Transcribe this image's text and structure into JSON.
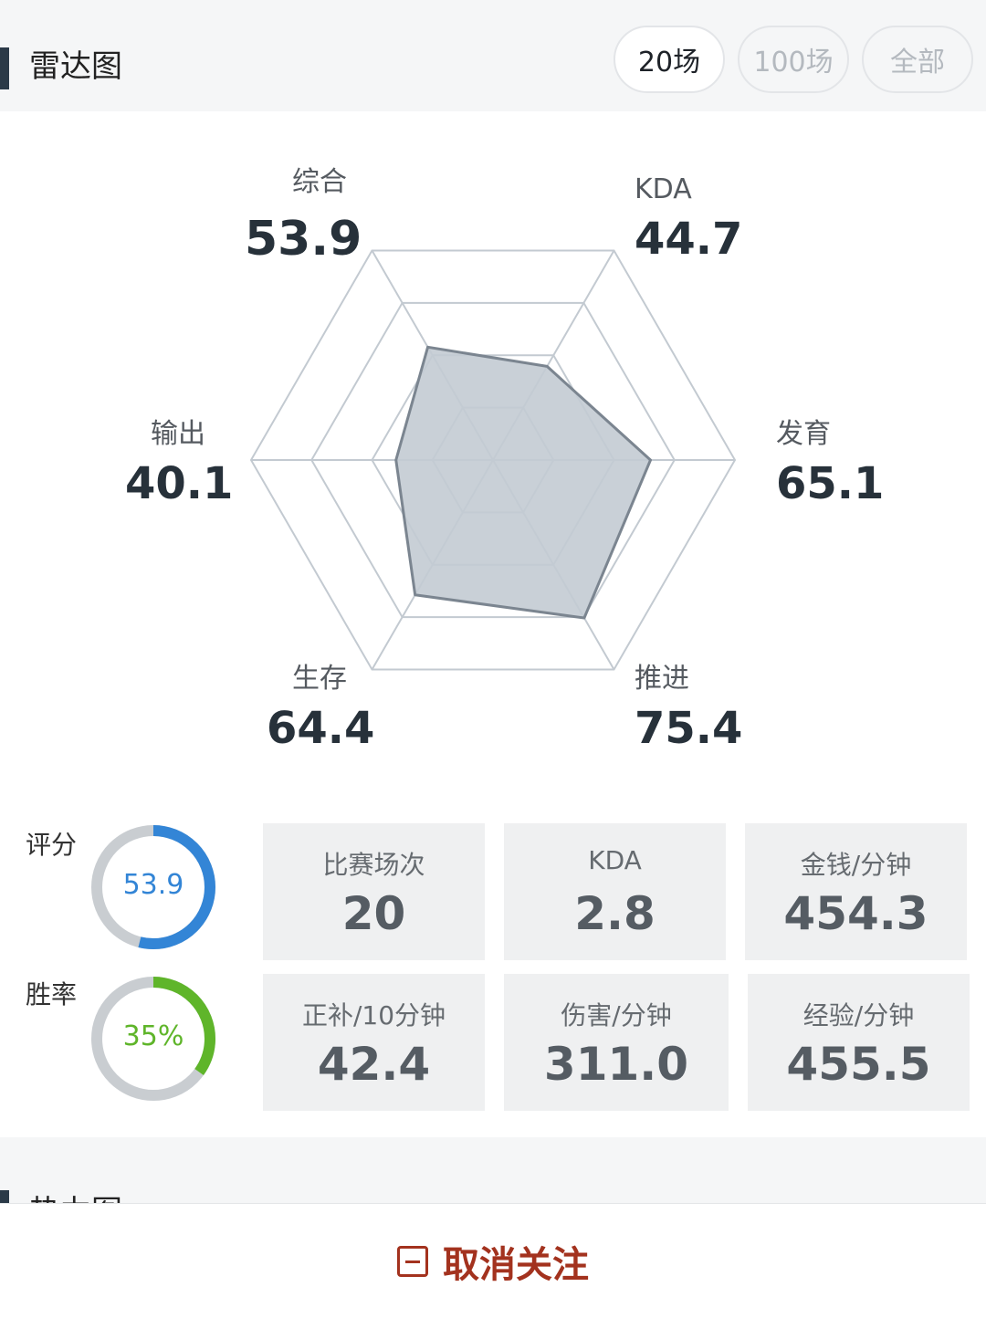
{
  "header": {
    "title": "雷达图",
    "filters": [
      "20场",
      "100场",
      "全部"
    ],
    "active_filter": "20场"
  },
  "radar": {
    "axes": [
      {
        "label": "综合",
        "value": "53.9",
        "score": 53.9
      },
      {
        "label": "KDA",
        "value": "44.7",
        "score": 44.7
      },
      {
        "label": "发育",
        "value": "65.1",
        "score": 65.1
      },
      {
        "label": "推进",
        "value": "75.4",
        "score": 75.4
      },
      {
        "label": "生存",
        "value": "64.4",
        "score": 64.4
      },
      {
        "label": "输出",
        "value": "40.1",
        "score": 40.1
      }
    ],
    "max": 100,
    "colors": {
      "grid": "#c3cad1",
      "fill": "#c3cbd3",
      "stroke": "#7b8590"
    }
  },
  "rings": {
    "rating": {
      "label": "评分",
      "text": "53.9",
      "fraction": 0.539,
      "color": "#3385d6"
    },
    "winrate": {
      "label": "胜率",
      "text": "35%",
      "fraction": 0.35,
      "color": "#5fb52a"
    },
    "track_color": "#c9cdd1"
  },
  "stats": [
    {
      "label": "比赛场次",
      "value": "20"
    },
    {
      "label": "KDA",
      "value": "2.8"
    },
    {
      "label": "金钱/分钟",
      "value": "454.3"
    },
    {
      "label": "正补/10分钟",
      "value": "42.4"
    },
    {
      "label": "伤害/分钟",
      "value": "311.0"
    },
    {
      "label": "经验/分钟",
      "value": "455.5"
    }
  ],
  "next_section": {
    "title": "热力图"
  },
  "footer": {
    "unfollow_label": "取消关注",
    "accent": "#a3321e"
  }
}
